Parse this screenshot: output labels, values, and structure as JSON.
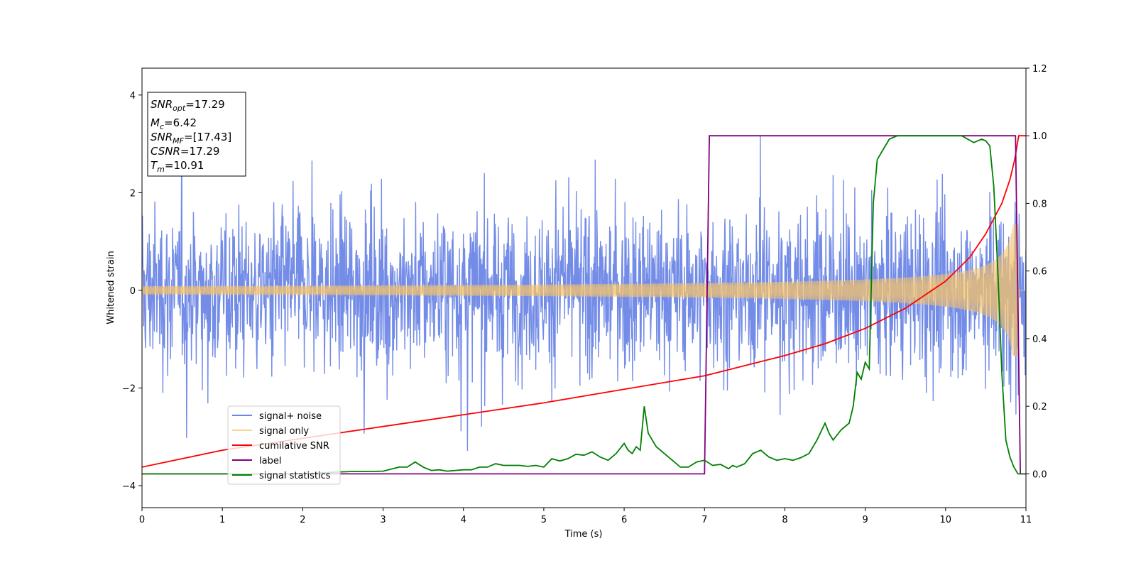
{
  "chart_data": {
    "type": "line",
    "title": "",
    "xlabel": "Time (s)",
    "ylabel": "Whitened strain",
    "xlim": [
      0,
      11
    ],
    "ylim": [
      -4.45,
      4.55
    ],
    "y2lim": [
      -0.1,
      1.2
    ],
    "xticks": [
      0,
      1,
      2,
      3,
      4,
      5,
      6,
      7,
      8,
      9,
      10,
      11
    ],
    "yticks": [
      -4,
      -2,
      0,
      2,
      4
    ],
    "y2ticks": [
      "0.0",
      "0.2",
      "0.4",
      "0.6",
      "0.8",
      "1.0",
      "1.2"
    ],
    "grid": false,
    "legend_position": "lower-left",
    "annotation": {
      "snr_opt": {
        "base": "SNR",
        "sub": "opt",
        "value": "=17.29"
      },
      "mc": {
        "base": "M",
        "sub": "c",
        "value": "=6.42"
      },
      "snr_mf": {
        "base": "SNR",
        "sub": "MF",
        "value": "=[17.43]"
      },
      "csnr": {
        "base": "CSNR",
        "value": "=17.29"
      },
      "tm": {
        "base": "T",
        "sub": "m",
        "value": "=10.91"
      }
    },
    "series": [
      {
        "name": "signal+ noise",
        "axis": "left",
        "color": "#6b86e6",
        "description": "whitened noisy strain, roughly unit-variance noise with spikes up to about ±4"
      },
      {
        "name": "signal only",
        "axis": "left",
        "color": "#f5c36b",
        "description": "chirp signal, amplitude growing from ~0.1 to ~1.3 ending near t=10.91"
      },
      {
        "name": "cumilative SNR",
        "axis": "right",
        "color": "#ff0000",
        "x": [
          0,
          1,
          2,
          3,
          4,
          5,
          6,
          7,
          8,
          8.5,
          9,
          9.5,
          10,
          10.3,
          10.5,
          10.7,
          10.8,
          10.86,
          10.91,
          11
        ],
        "values": [
          0.02,
          0.07,
          0.105,
          0.14,
          0.175,
          0.21,
          0.25,
          0.29,
          0.35,
          0.385,
          0.43,
          0.49,
          0.57,
          0.64,
          0.71,
          0.8,
          0.87,
          0.93,
          1.0,
          1.0
        ]
      },
      {
        "name": "label",
        "axis": "right",
        "color": "#800080",
        "x": [
          0,
          7.0,
          7.06,
          10.87,
          10.93,
          11
        ],
        "values": [
          0,
          0,
          1,
          1,
          0,
          0
        ]
      },
      {
        "name": "signal statistics",
        "axis": "right",
        "color": "#008000",
        "x": [
          0,
          0.5,
          1,
          1.5,
          2,
          2.4,
          2.6,
          2.8,
          3,
          3.2,
          3.3,
          3.4,
          3.5,
          3.6,
          3.7,
          3.8,
          3.9,
          4,
          4.1,
          4.2,
          4.3,
          4.4,
          4.5,
          4.6,
          4.7,
          4.8,
          4.9,
          5,
          5.1,
          5.2,
          5.3,
          5.4,
          5.5,
          5.6,
          5.7,
          5.8,
          5.9,
          6,
          6.05,
          6.1,
          6.15,
          6.2,
          6.25,
          6.3,
          6.4,
          6.5,
          6.6,
          6.7,
          6.8,
          6.9,
          7,
          7.1,
          7.2,
          7.3,
          7.35,
          7.4,
          7.5,
          7.6,
          7.7,
          7.8,
          7.9,
          8,
          8.1,
          8.2,
          8.3,
          8.4,
          8.5,
          8.55,
          8.6,
          8.7,
          8.8,
          8.85,
          8.9,
          8.95,
          9,
          9.05,
          9.1,
          9.15,
          9.2,
          9.25,
          9.3,
          9.4,
          9.5,
          9.6,
          9.8,
          10,
          10.2,
          10.35,
          10.45,
          10.5,
          10.55,
          10.6,
          10.65,
          10.7,
          10.75,
          10.8,
          10.85,
          10.9,
          10.95,
          11
        ],
        "values": [
          0,
          0.0,
          0.0,
          0.0,
          0.0,
          0.005,
          0.007,
          0.007,
          0.008,
          0.02,
          0.02,
          0.035,
          0.02,
          0.01,
          0.012,
          0.008,
          0.01,
          0.012,
          0.012,
          0.02,
          0.02,
          0.03,
          0.025,
          0.025,
          0.025,
          0.022,
          0.025,
          0.02,
          0.045,
          0.038,
          0.045,
          0.058,
          0.055,
          0.065,
          0.05,
          0.04,
          0.06,
          0.09,
          0.07,
          0.06,
          0.08,
          0.07,
          0.2,
          0.12,
          0.08,
          0.06,
          0.04,
          0.02,
          0.02,
          0.035,
          0.04,
          0.025,
          0.028,
          0.015,
          0.025,
          0.02,
          0.03,
          0.06,
          0.07,
          0.05,
          0.04,
          0.045,
          0.04,
          0.048,
          0.06,
          0.1,
          0.15,
          0.12,
          0.1,
          0.13,
          0.15,
          0.2,
          0.3,
          0.28,
          0.33,
          0.31,
          0.8,
          0.93,
          0.95,
          0.97,
          0.99,
          1.0,
          1.0,
          1.0,
          1.0,
          1.0,
          1.0,
          0.98,
          0.99,
          0.985,
          0.97,
          0.85,
          0.6,
          0.3,
          0.1,
          0.05,
          0.02,
          0.0,
          0.0,
          0.0
        ]
      }
    ]
  }
}
